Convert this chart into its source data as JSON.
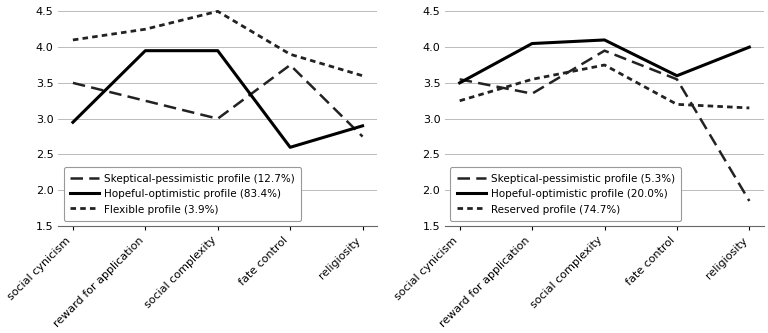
{
  "x_categories": [
    "social cynicism",
    "reward for application",
    "social complexity",
    "fate control",
    "religiosity"
  ],
  "left_chart": {
    "series": [
      {
        "label": "Skeptical-pessimistic profile (12.7%)",
        "values": [
          3.5,
          3.25,
          3.0,
          3.75,
          2.75
        ],
        "linestyle": "dashed",
        "color": "#222222",
        "linewidth": 1.8
      },
      {
        "label": "Hopeful-optimistic profile (83.4%)",
        "values": [
          2.95,
          3.95,
          3.95,
          2.6,
          2.9
        ],
        "linestyle": "solid",
        "color": "#000000",
        "linewidth": 2.2
      },
      {
        "label": "Flexible profile (3.9%)",
        "values": [
          4.1,
          4.25,
          4.5,
          3.9,
          3.6
        ],
        "linestyle": "dotted",
        "color": "#222222",
        "linewidth": 2.0
      }
    ],
    "legend_labels": [
      "Skeptical-pessimistic profile (12.7%)",
      "Hopeful-optimistic profile (83.4%)",
      "Flexible profile (3.9%)"
    ],
    "ylim": [
      1.5,
      4.6
    ],
    "yticks": [
      1.5,
      2.0,
      2.5,
      3.0,
      3.5,
      4.0,
      4.5
    ]
  },
  "right_chart": {
    "series": [
      {
        "label": "Skeptical-pessimistic profile (5.3%)",
        "values": [
          3.55,
          3.35,
          3.95,
          3.55,
          1.85
        ],
        "linestyle": "dashed",
        "color": "#222222",
        "linewidth": 1.8
      },
      {
        "label": "Hopeful-optimistic profile (20.0%)",
        "values": [
          3.5,
          4.05,
          4.1,
          3.6,
          4.0
        ],
        "linestyle": "solid",
        "color": "#000000",
        "linewidth": 2.2
      },
      {
        "label": "Reserved profile (74.7%)",
        "values": [
          3.25,
          3.55,
          3.75,
          3.2,
          3.15
        ],
        "linestyle": "dotted",
        "color": "#222222",
        "linewidth": 2.0
      }
    ],
    "legend_labels": [
      "Skeptical-pessimistic profile (5.3%)",
      "Hopeful-optimistic profile (20.0%)",
      "Reserved profile (74.7%)"
    ],
    "ylim": [
      1.5,
      4.6
    ],
    "yticks": [
      1.5,
      2.0,
      2.5,
      3.0,
      3.5,
      4.0,
      4.5
    ]
  },
  "background_color": "#ffffff",
  "grid_color": "#bbbbbb",
  "tick_fontsize": 8,
  "legend_fontsize": 7.5,
  "xticklabel_fontsize": 8
}
